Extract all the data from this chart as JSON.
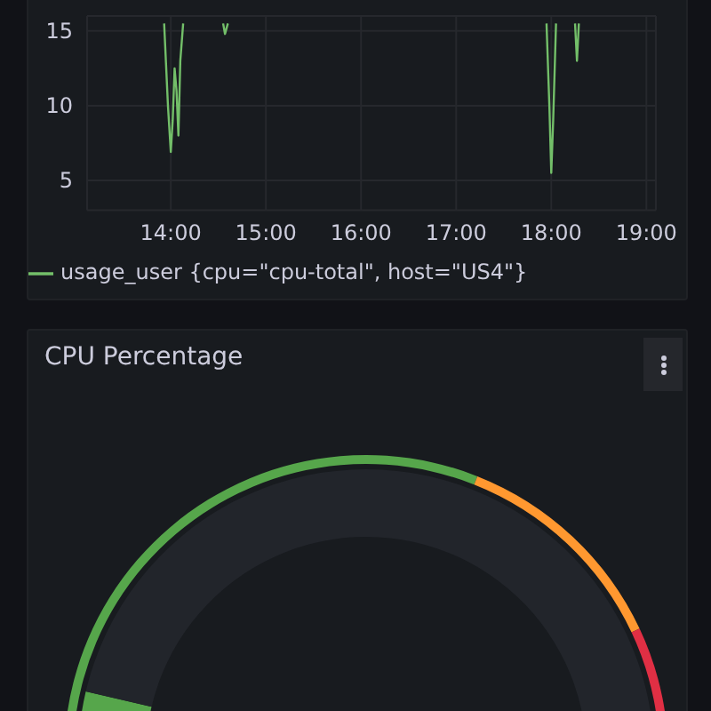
{
  "chart_data": [
    {
      "type": "line",
      "series": [
        {
          "name": "usage_user {cpu=\"cpu-total\", host=\"US4\"}",
          "color": "#73bf69",
          "x": [
            13.93,
            13.97,
            14.0,
            14.02,
            14.04,
            14.06,
            14.08,
            14.1,
            14.13,
            14.3,
            14.55,
            14.57,
            14.6,
            16,
            17.95,
            17.98,
            18.0,
            18.02,
            18.05,
            18.15,
            18.25,
            18.27,
            18.29
          ],
          "values": [
            15.5,
            10,
            6.9,
            9,
            12.5,
            11,
            8,
            13,
            15.5,
            null,
            15.5,
            14.8,
            15.5,
            null,
            15.5,
            10,
            5.5,
            9,
            15.5,
            null,
            15.5,
            13.0,
            15.5
          ]
        }
      ],
      "xlim": [
        13.12,
        19.1
      ],
      "xticks": [
        {
          "value": 14,
          "label": "14:00"
        },
        {
          "value": 15,
          "label": "15:00"
        },
        {
          "value": 16,
          "label": "16:00"
        },
        {
          "value": 17,
          "label": "17:00"
        },
        {
          "value": 18,
          "label": "18:00"
        },
        {
          "value": 19,
          "label": "19:00"
        }
      ],
      "ylim": [
        3,
        16
      ],
      "yticks": [
        5,
        10,
        15
      ],
      "grid": true,
      "legend": "bottom"
    },
    {
      "type": "donut",
      "title": "CPU Percentage",
      "series": [
        {
          "values": [
            18,
            82
          ],
          "colors": [
            "#56a64b",
            "#22252b"
          ]
        },
        {
          "values": [
            59,
            18,
            23
          ],
          "colors": [
            "#56a64b",
            "#ff9830",
            "#e02f44"
          ]
        }
      ]
    }
  ]
}
